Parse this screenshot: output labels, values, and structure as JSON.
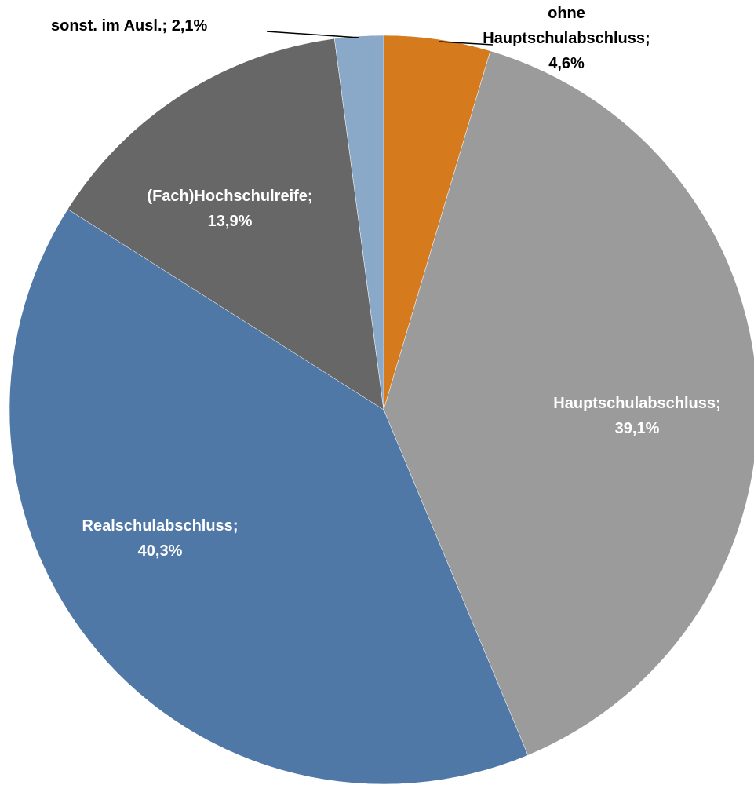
{
  "chart_data": {
    "type": "pie",
    "categories": [
      "ohne Hauptschulabschluss",
      "Hauptschulabschluss",
      "Realschulabschluss",
      "(Fach)Hochschulreife",
      "sonst. im Ausl."
    ],
    "values": [
      4.6,
      39.1,
      40.3,
      13.9,
      2.1
    ],
    "value_labels": [
      "4,6%",
      "39,1%",
      "40,3%",
      "13,9%",
      "2,1%"
    ],
    "label_separator": ";",
    "colors": [
      "#d57b1d",
      "#9b9b9b",
      "#4f78a6",
      "#676767",
      "#8aa8c8"
    ]
  }
}
